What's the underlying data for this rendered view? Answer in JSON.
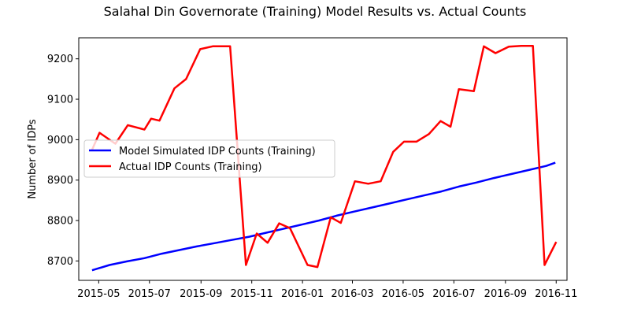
{
  "chart_data": {
    "type": "line",
    "title": "Salahal Din Governorate (Training) Model Results vs. Actual Counts",
    "xlabel": "",
    "ylabel": "Number of IDPs",
    "xlim": [
      "2015-04-07",
      "2016-11-14"
    ],
    "ylim": [
      8652,
      9252
    ],
    "x_ticks": [
      "2015-05-01",
      "2015-07-01",
      "2015-09-01",
      "2015-11-01",
      "2016-01-01",
      "2016-03-01",
      "2016-05-01",
      "2016-07-01",
      "2016-09-01",
      "2016-11-01"
    ],
    "x_tick_labels": [
      "2015-05",
      "2015-07",
      "2015-09",
      "2015-11",
      "2016-01",
      "2016-03",
      "2016-05",
      "2016-07",
      "2016-09",
      "2016-11"
    ],
    "y_ticks": [
      8700,
      8800,
      8900,
      9000,
      9100,
      9200
    ],
    "y_tick_labels": [
      "8700",
      "8800",
      "8900",
      "9000",
      "9100",
      "9200"
    ],
    "grid": false,
    "legend_position": "center-left",
    "series": [
      {
        "name": "Model Simulated IDP Counts (Training)",
        "color": "#0000ff",
        "points": [
          [
            "2015-04-23",
            8677
          ],
          [
            "2015-05-14",
            8690
          ],
          [
            "2015-06-04",
            8699
          ],
          [
            "2015-06-25",
            8707
          ],
          [
            "2015-07-16",
            8718
          ],
          [
            "2015-08-06",
            8727
          ],
          [
            "2015-08-27",
            8736
          ],
          [
            "2015-09-17",
            8744
          ],
          [
            "2015-10-08",
            8752
          ],
          [
            "2015-10-29",
            8760
          ],
          [
            "2015-11-19",
            8770
          ],
          [
            "2015-12-10",
            8780
          ],
          [
            "2015-12-31",
            8790
          ],
          [
            "2016-01-21",
            8800
          ],
          [
            "2016-02-11",
            8812
          ],
          [
            "2016-03-03",
            8822
          ],
          [
            "2016-03-24",
            8832
          ],
          [
            "2016-04-14",
            8842
          ],
          [
            "2016-05-05",
            8852
          ],
          [
            "2016-05-26",
            8862
          ],
          [
            "2016-06-16",
            8872
          ],
          [
            "2016-07-07",
            8884
          ],
          [
            "2016-07-28",
            8894
          ],
          [
            "2016-08-18",
            8905
          ],
          [
            "2016-09-08",
            8915
          ],
          [
            "2016-09-29",
            8925
          ],
          [
            "2016-10-20",
            8935
          ],
          [
            "2016-10-31",
            8943
          ]
        ]
      },
      {
        "name": "Actual IDP Counts (Training)",
        "color": "#ff0000",
        "points": [
          [
            "2015-04-23",
            8975
          ],
          [
            "2015-05-02",
            9017
          ],
          [
            "2015-05-21",
            8990
          ],
          [
            "2015-06-05",
            9036
          ],
          [
            "2015-06-25",
            9025
          ],
          [
            "2015-07-03",
            9052
          ],
          [
            "2015-07-13",
            9047
          ],
          [
            "2015-07-31",
            9127
          ],
          [
            "2015-08-14",
            9150
          ],
          [
            "2015-08-31",
            9224
          ],
          [
            "2015-09-15",
            9231
          ],
          [
            "2015-10-06",
            9231
          ],
          [
            "2015-10-25",
            8690
          ],
          [
            "2015-11-07",
            8768
          ],
          [
            "2015-11-20",
            8745
          ],
          [
            "2015-12-04",
            8793
          ],
          [
            "2015-12-17",
            8781
          ],
          [
            "2016-01-07",
            8690
          ],
          [
            "2016-01-19",
            8685
          ],
          [
            "2016-02-04",
            8808
          ],
          [
            "2016-02-16",
            8794
          ],
          [
            "2016-03-04",
            8897
          ],
          [
            "2016-03-20",
            8891
          ],
          [
            "2016-04-04",
            8897
          ],
          [
            "2016-04-19",
            8970
          ],
          [
            "2016-05-02",
            8995
          ],
          [
            "2016-05-17",
            8995
          ],
          [
            "2016-06-01",
            9014
          ],
          [
            "2016-06-15",
            9046
          ],
          [
            "2016-06-27",
            9032
          ],
          [
            "2016-07-07",
            9125
          ],
          [
            "2016-07-25",
            9120
          ],
          [
            "2016-08-06",
            9231
          ],
          [
            "2016-08-20",
            9214
          ],
          [
            "2016-09-05",
            9230
          ],
          [
            "2016-09-20",
            9232
          ],
          [
            "2016-10-04",
            9232
          ],
          [
            "2016-10-18",
            8690
          ],
          [
            "2016-11-01",
            8747
          ]
        ]
      }
    ]
  }
}
